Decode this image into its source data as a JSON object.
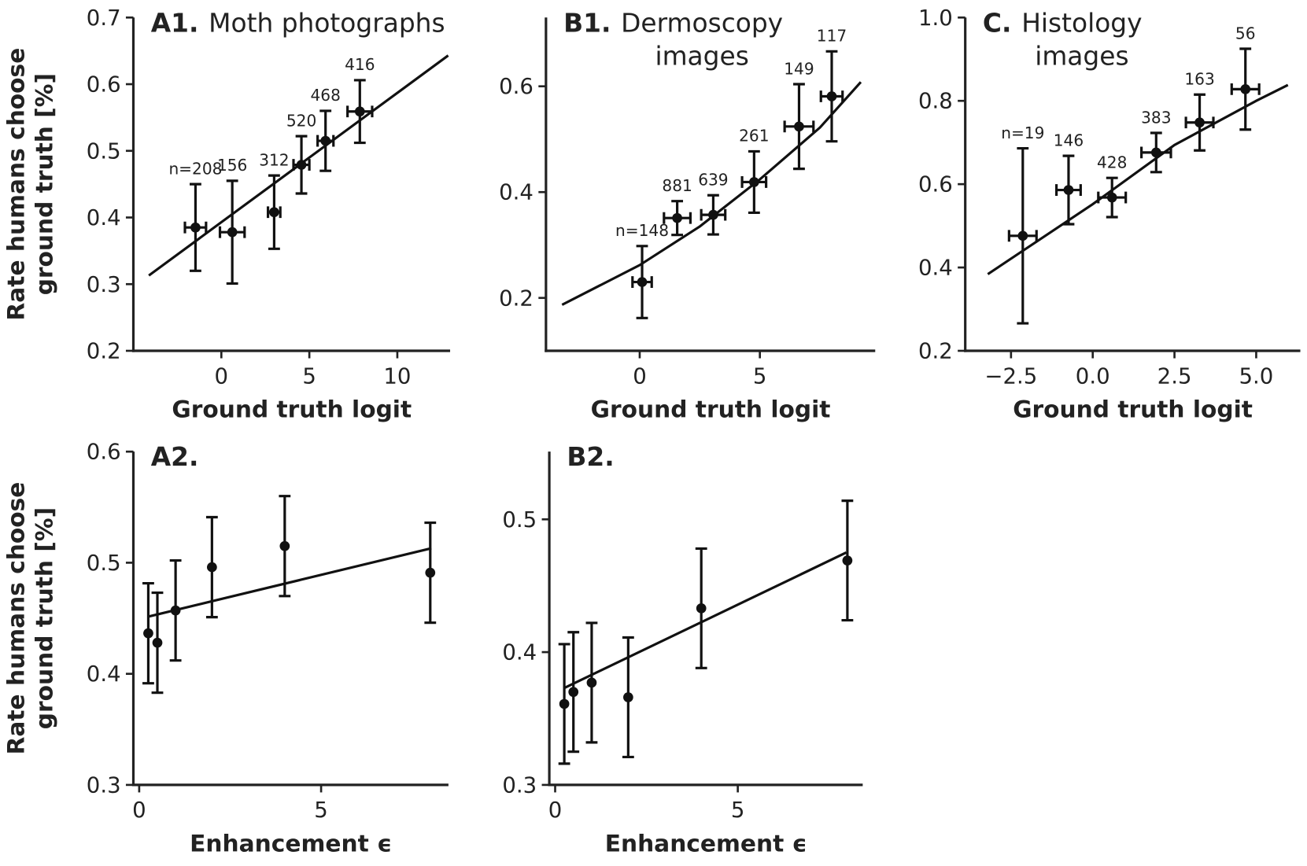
{
  "chart_data": [
    {
      "type": "scatter",
      "title": "A1.",
      "subtitle": [
        "Moth photographs"
      ],
      "xlabel": "Ground truth logit",
      "ylabel": [
        "Rate humans choose",
        "ground truth [%]"
      ],
      "x": [
        -1.47,
        0.62,
        3.0,
        4.55,
        5.92,
        7.87
      ],
      "y": [
        0.385,
        0.378,
        0.408,
        0.479,
        0.515,
        0.559
      ],
      "xerr": [
        0.6,
        0.7,
        0.35,
        0.45,
        0.45,
        0.7
      ],
      "yerr": [
        0.065,
        0.077,
        0.055,
        0.043,
        0.045,
        0.047
      ],
      "point_labels": [
        "n=208",
        "156",
        "312",
        "520",
        "468",
        "416"
      ],
      "fit": {
        "x": [
          -4.12,
          12.89
        ],
        "y": [
          0.313,
          0.643
        ]
      },
      "xlim": [
        -5.0,
        13.0
      ],
      "ylim": [
        0.2,
        0.7
      ],
      "xticks": [
        0,
        5,
        10
      ],
      "yticks": [
        0.2,
        0.3,
        0.4,
        0.5,
        0.6,
        0.7
      ],
      "color": "#111111"
    },
    {
      "type": "scatter",
      "title": "B1.",
      "subtitle": [
        "Dermoscopy",
        "images"
      ],
      "xlabel": "Ground truth logit",
      "x": [
        0.1,
        1.56,
        3.06,
        4.76,
        6.63,
        7.99
      ],
      "y": [
        0.23,
        0.351,
        0.357,
        0.419,
        0.524,
        0.581
      ],
      "xerr": [
        0.4,
        0.55,
        0.5,
        0.5,
        0.6,
        0.45
      ],
      "yerr": [
        0.068,
        0.032,
        0.037,
        0.058,
        0.08,
        0.085
      ],
      "point_labels": [
        "n=148",
        "881",
        "639",
        "261",
        "149",
        "117"
      ],
      "fit": {
        "x": [
          -3.23,
          0,
          2.5,
          5,
          7.5,
          9.2
        ],
        "y": [
          0.187,
          0.262,
          0.335,
          0.424,
          0.522,
          0.608
        ]
      },
      "xlim": [
        -3.9,
        9.8
      ],
      "ylim": [
        0.1,
        0.73
      ],
      "xticks": [
        0,
        5
      ],
      "yticks": [
        0.2,
        0.4,
        0.6
      ],
      "color": "#111111"
    },
    {
      "type": "scatter",
      "title": "C.",
      "subtitle": [
        "Histology",
        "images"
      ],
      "xlabel": "Ground truth logit",
      "x": [
        -2.14,
        -0.74,
        0.59,
        1.94,
        3.27,
        4.67
      ],
      "y": [
        0.476,
        0.586,
        0.568,
        0.676,
        0.748,
        0.828
      ],
      "xerr": [
        0.42,
        0.37,
        0.42,
        0.45,
        0.42,
        0.42
      ],
      "yerr": [
        0.21,
        0.082,
        0.047,
        0.047,
        0.067,
        0.097
      ],
      "point_labels": [
        "n=19",
        "146",
        "428",
        "383",
        "163",
        "56"
      ],
      "fit": {
        "x": [
          -3.21,
          0,
          2.5,
          5,
          5.97
        ],
        "y": [
          0.384,
          0.552,
          0.694,
          0.8,
          0.838
        ]
      },
      "xlim": [
        -3.9,
        6.35
      ],
      "ylim": [
        0.2,
        1.0
      ],
      "xticks": [
        {
          "value": -2.5,
          "label": "−2.5"
        },
        {
          "value": 0,
          "label": "0.0"
        },
        2.5,
        {
          "value": 5,
          "label": "5.0"
        }
      ],
      "yticks": [
        0.2,
        0.4,
        0.6,
        0.8,
        {
          "value": 1,
          "label": "1.0"
        }
      ],
      "color": "#111111"
    },
    {
      "type": "scatter",
      "title": "A2.",
      "xlabel": "Enhancement ϵ",
      "ylabel": [
        "Rate humans choose",
        "ground truth [%]"
      ],
      "x": [
        0.25,
        0.5,
        1,
        2,
        4,
        8
      ],
      "y": [
        0.4365,
        0.428,
        0.457,
        0.496,
        0.515,
        0.491
      ],
      "yerr": [
        0.045,
        0.045,
        0.045,
        0.045,
        0.045,
        0.045
      ],
      "fit": {
        "x": [
          0.25,
          8.03
        ],
        "y": [
          0.4515,
          0.513
        ]
      },
      "xlim": [
        -0.16,
        8.5
      ],
      "ylim": [
        0.3,
        0.6
      ],
      "xticks": [
        0,
        5
      ],
      "yticks": [
        0.3,
        0.4,
        0.5,
        0.6
      ],
      "color": "#111111"
    },
    {
      "type": "scatter",
      "title": "B2.",
      "xlabel": "Enhancement ϵ",
      "x": [
        0.25,
        0.5,
        1,
        2,
        4,
        8
      ],
      "y": [
        0.361,
        0.37,
        0.377,
        0.366,
        0.433,
        0.469
      ],
      "yerr": [
        0.045,
        0.045,
        0.045,
        0.045,
        0.045,
        0.045
      ],
      "fit": {
        "x": [
          0.25,
          7.97
        ],
        "y": [
          0.373,
          0.475
        ]
      },
      "xlim": [
        -0.16,
        8.42
      ],
      "ylim": [
        0.3,
        0.551
      ],
      "xticks": [
        0,
        5
      ],
      "yticks": [
        0.3,
        0.4,
        0.5
      ],
      "color": "#111111"
    }
  ]
}
